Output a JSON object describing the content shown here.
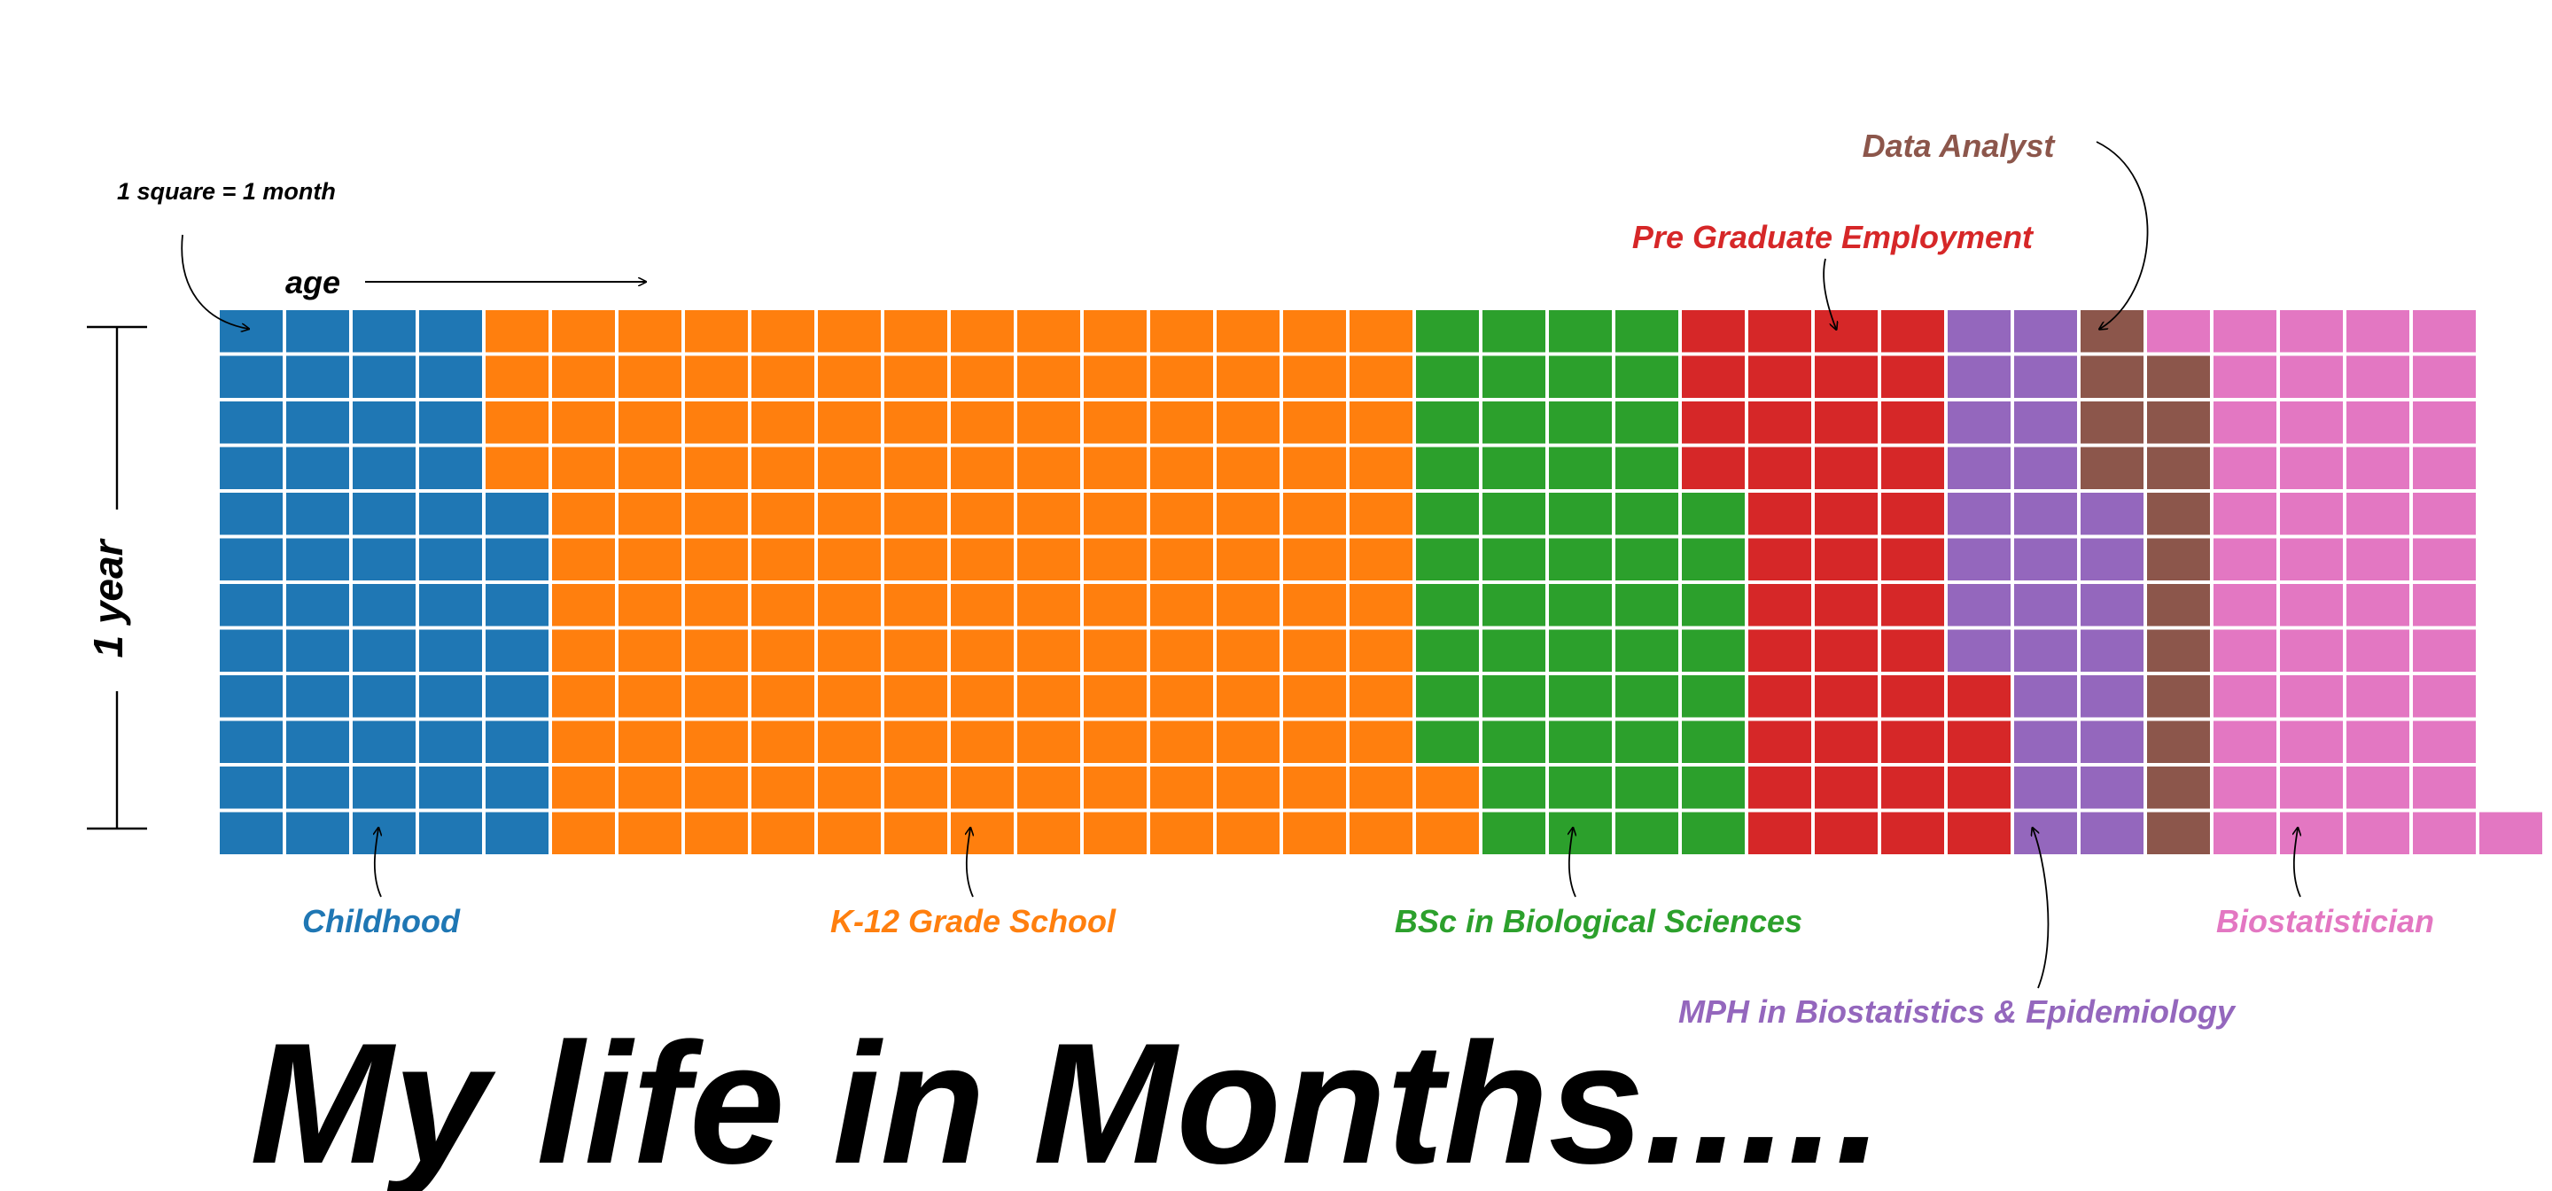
{
  "chart_data": {
    "type": "waffle",
    "title": "My life in Months.....",
    "unit_note": "1 square = 1 month",
    "x_axis_label": "age",
    "y_axis_label": "1 year",
    "months_per_column": 12,
    "series": [
      {
        "name": "Childhood",
        "months": 56,
        "color": "#1f77b4"
      },
      {
        "name": "K-12 Grade School",
        "months": 162,
        "color": "#ff7f0e"
      },
      {
        "name": "BSc in Biological Sciences",
        "months": 54,
        "color": "#2ca02c"
      },
      {
        "name": "Pre Graduate Employment",
        "months": 44,
        "color": "#d62728"
      },
      {
        "name": "MPH in Biostatistics & Epidemiology",
        "months": 28,
        "color": "#9467bd"
      },
      {
        "name": "Data Analyst",
        "months": 15,
        "color": "#8c564b"
      },
      {
        "name": "Biostatistician",
        "months": 50,
        "color": "#e377c2"
      }
    ]
  }
}
